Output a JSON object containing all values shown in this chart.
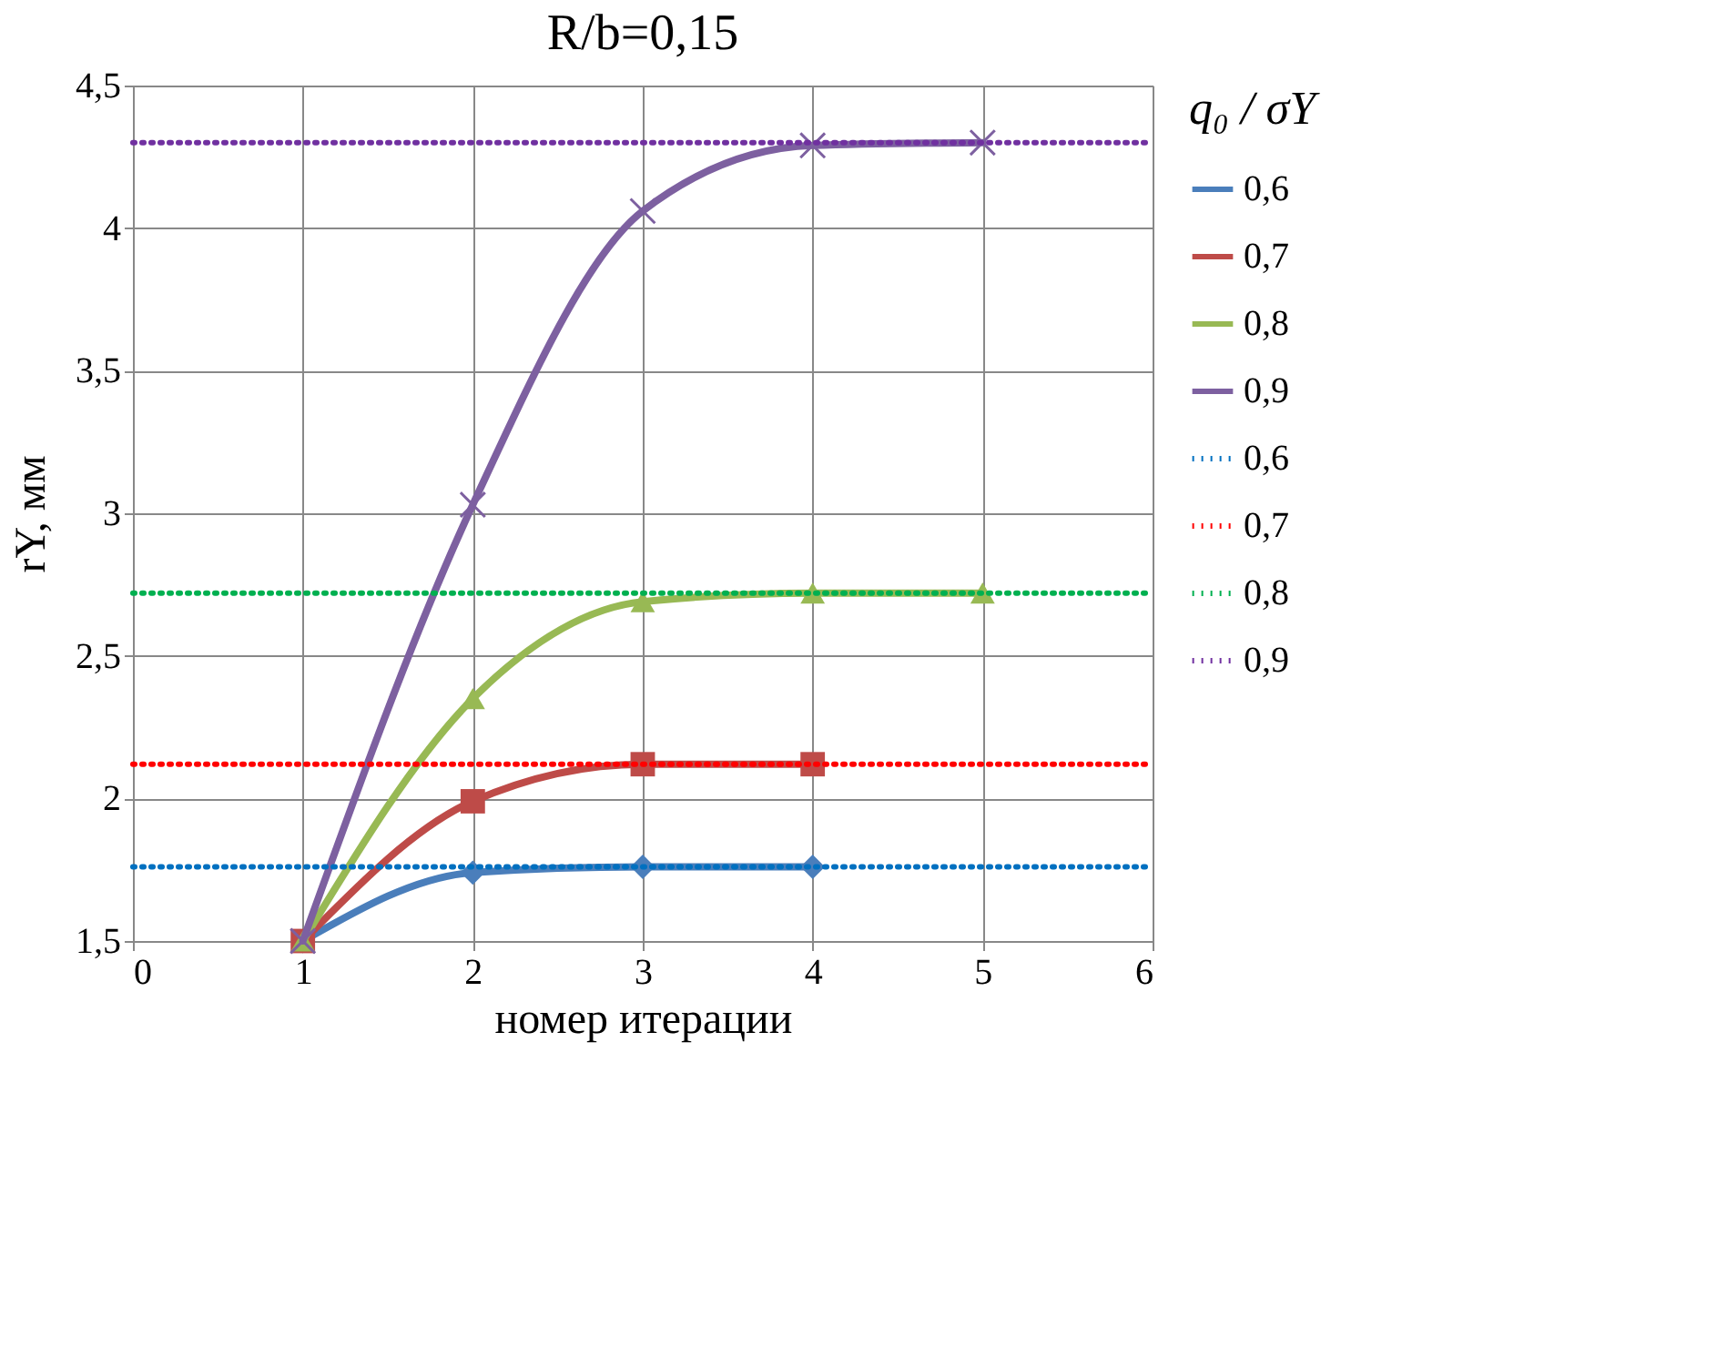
{
  "chart_data": {
    "type": "line",
    "title": "R/b=0,15",
    "xlabel": "номер итерации",
    "ylabel": "rY, мм",
    "legend_title": "q₀ / σY",
    "xlim": [
      0,
      6
    ],
    "xticks": [
      0,
      1,
      2,
      3,
      4,
      5,
      6
    ],
    "ylim": [
      1.5,
      4.5
    ],
    "yticks": [
      {
        "value": 1.5,
        "label": "1,5"
      },
      2,
      {
        "value": 2.5,
        "label": "2,5"
      },
      3,
      {
        "value": 3.5,
        "label": "3,5"
      },
      4,
      {
        "value": 4.5,
        "label": "4,5"
      }
    ],
    "grid": true,
    "legend": "right",
    "series": [
      {
        "name": "0,6",
        "color": "#4a7ebb",
        "marker": "diamond",
        "line_style": "solid",
        "x": [
          1,
          2,
          3,
          4
        ],
        "values": [
          1.5,
          1.74,
          1.76,
          1.76
        ]
      },
      {
        "name": "0,7",
        "color": "#be4b48",
        "marker": "square",
        "line_style": "solid",
        "x": [
          1,
          2,
          3,
          4
        ],
        "values": [
          1.5,
          1.99,
          2.12,
          2.12
        ]
      },
      {
        "name": "0,8",
        "color": "#98b954",
        "marker": "triangle",
        "line_style": "solid",
        "x": [
          1,
          2,
          3,
          4,
          5
        ],
        "values": [
          1.5,
          2.35,
          2.69,
          2.72,
          2.72
        ]
      },
      {
        "name": "0,9",
        "color": "#7d60a0",
        "marker": "cross",
        "line_style": "solid",
        "x": [
          1,
          2,
          3,
          4,
          5
        ],
        "values": [
          1.5,
          3.03,
          4.06,
          4.29,
          4.3
        ]
      },
      {
        "name": "0,6",
        "color": "#0070c0",
        "marker": "none",
        "line_style": "dotted",
        "x": [
          0,
          6
        ],
        "values": [
          1.76,
          1.76
        ]
      },
      {
        "name": "0,7",
        "color": "#ff0000",
        "marker": "none",
        "line_style": "dotted",
        "x": [
          0,
          6
        ],
        "values": [
          2.12,
          2.12
        ]
      },
      {
        "name": "0,8",
        "color": "#00b050",
        "marker": "none",
        "line_style": "dotted",
        "x": [
          0,
          6
        ],
        "values": [
          2.72,
          2.72
        ]
      },
      {
        "name": "0,9",
        "color": "#7030a0",
        "marker": "none",
        "line_style": "dotted",
        "x": [
          0,
          6
        ],
        "values": [
          4.3,
          4.3
        ]
      }
    ]
  }
}
